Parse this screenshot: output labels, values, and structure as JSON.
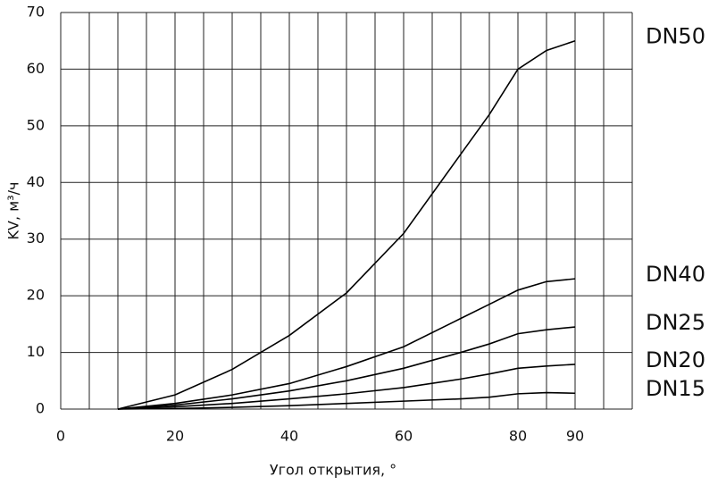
{
  "chart_data": {
    "type": "line",
    "y_label": "KV, м³/ч",
    "x_label": "Угол открытия, °",
    "x": [
      10,
      20,
      30,
      40,
      50,
      60,
      70,
      75,
      80,
      85,
      90
    ],
    "series": [
      {
        "name": "DN50",
        "color": "#000000",
        "values": [
          0,
          2.5,
          7,
          13,
          20.5,
          31,
          45,
          52,
          60,
          63.3,
          65
        ]
      },
      {
        "name": "DN40",
        "color": "#000000",
        "values": [
          0,
          1,
          2.5,
          4.5,
          7.5,
          11,
          16,
          18.5,
          21,
          22.5,
          23
        ]
      },
      {
        "name": "DN25",
        "color": "#000000",
        "values": [
          0,
          0.7,
          1.8,
          3.2,
          5,
          7.2,
          10,
          11.5,
          13.3,
          14,
          14.5
        ]
      },
      {
        "name": "DN20",
        "color": "#000000",
        "values": [
          0,
          0.4,
          1,
          1.8,
          2.7,
          3.8,
          5.3,
          6.2,
          7.2,
          7.6,
          7.9
        ]
      },
      {
        "name": "DN15",
        "color": "#000000",
        "values": [
          0,
          0.1,
          0.3,
          0.6,
          1,
          1.4,
          1.8,
          2.1,
          2.7,
          2.9,
          2.8
        ]
      }
    ],
    "xlim": [
      0,
      100
    ],
    "ylim": [
      0,
      70
    ],
    "xticks": [
      0,
      20,
      40,
      60,
      80,
      90
    ],
    "yticks": [
      0,
      10,
      20,
      30,
      40,
      50,
      60,
      70
    ],
    "xgrid": [
      0,
      5,
      10,
      15,
      20,
      25,
      30,
      35,
      40,
      45,
      50,
      55,
      60,
      65,
      70,
      75,
      80,
      85,
      90,
      95,
      100
    ],
    "grid": true
  }
}
